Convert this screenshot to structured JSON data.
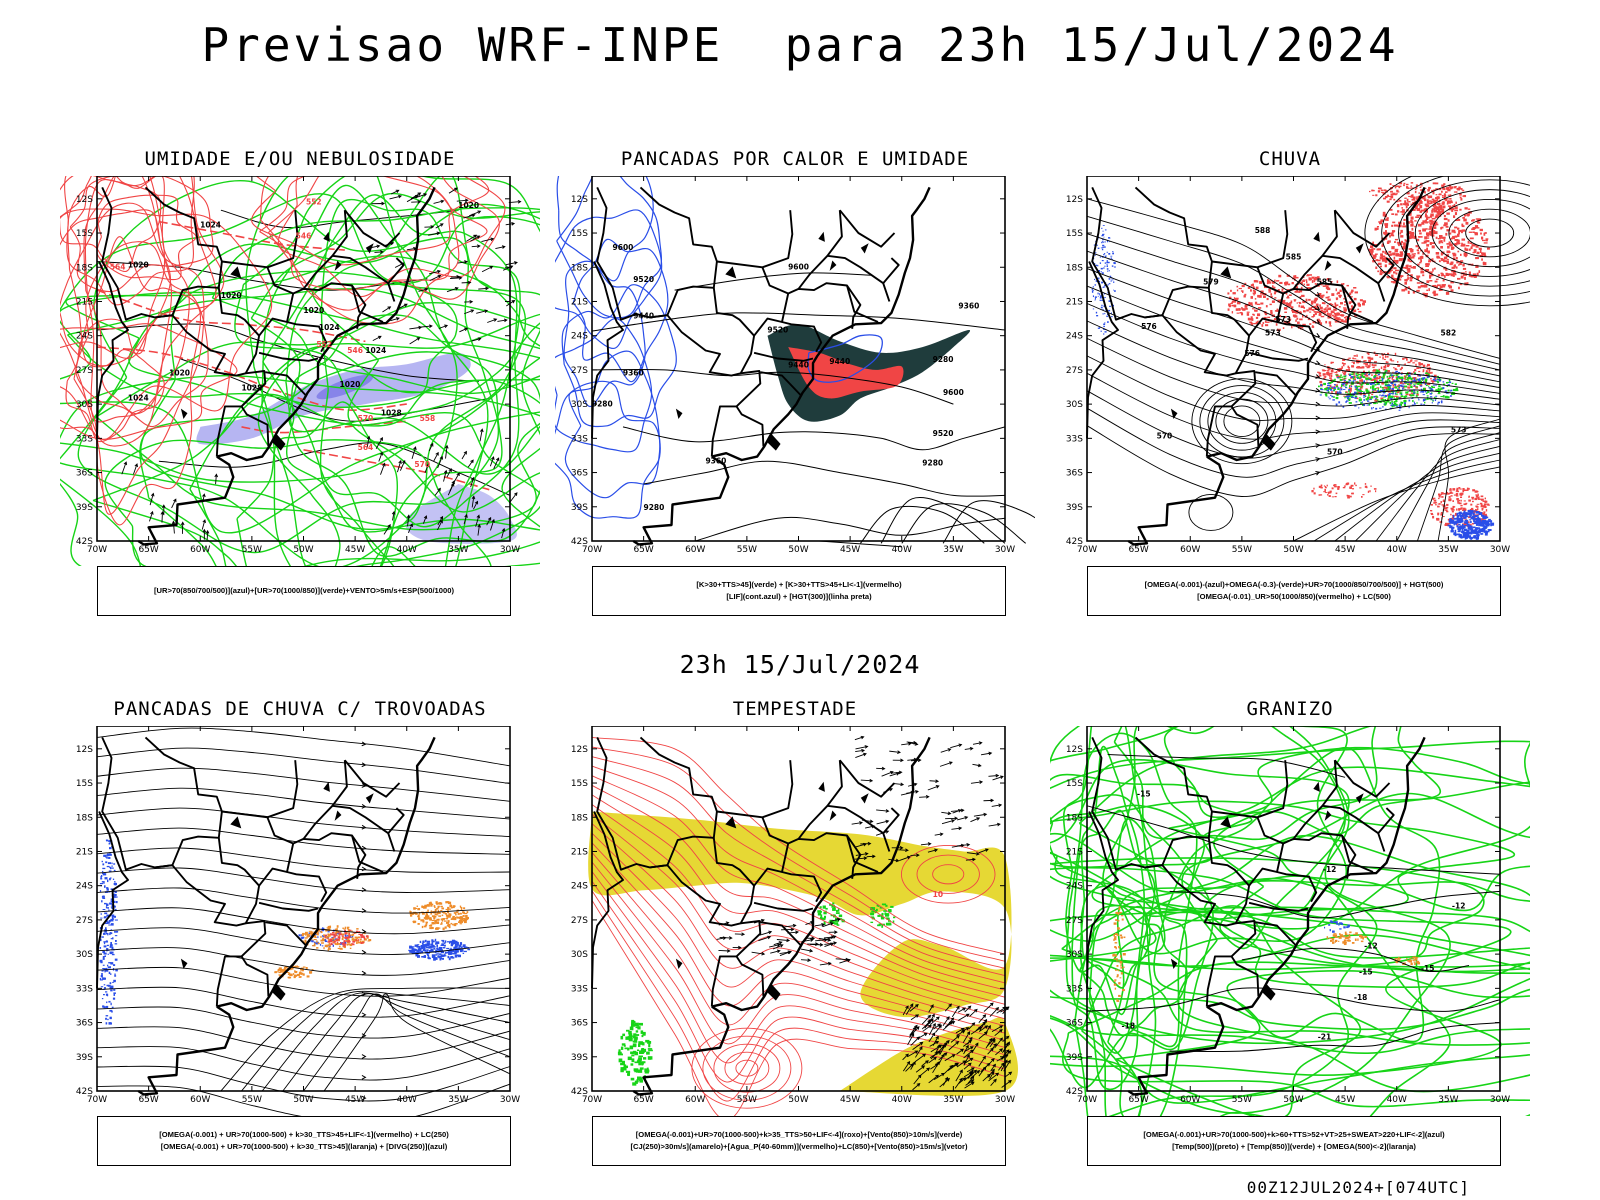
{
  "title": "Previsao WRF-INPE  para 23h 15/Jul/2024",
  "subtitle": "23h 15/Jul/2024",
  "footer": "00Z12JUL2024+[074UTC]",
  "axes": {
    "lat_labels": [
      "12S",
      "15S",
      "18S",
      "21S",
      "24S",
      "27S",
      "30S",
      "33S",
      "36S",
      "39S",
      "42S"
    ],
    "lon_labels": [
      "70W",
      "65W",
      "60W",
      "55W",
      "50W",
      "45W",
      "40W",
      "35W",
      "30W"
    ]
  },
  "colors": {
    "blue": "#2a4ee8",
    "green": "#17d417",
    "red": "#f04545",
    "orange": "#ee8c2a",
    "yellow": "#e6d834",
    "darkteal": "#1f3c3c",
    "lavender": "#a9a8f0"
  },
  "panels": [
    {
      "id": "umidade",
      "title": "UMIDADE E/OU NEBULOSIDADE",
      "legend": [
        "[UR>70(850/700/500)](azul)+[UR>70(1000/850)](verde)+VENTO>5m/s+ESP(500/1000)"
      ],
      "contour_labels": [
        "1020",
        "1024",
        "1020",
        "1020",
        "1020",
        "1024",
        "1024",
        "1020",
        "1024",
        "1028",
        "1020",
        "1028",
        "570",
        "570",
        "564",
        "558",
        "552",
        "546",
        "564",
        "552",
        "546"
      ]
    },
    {
      "id": "pancadas-calor",
      "title": "PANCADAS POR CALOR E UMIDADE",
      "legend": [
        "[K>30+TTS>45](verde) + [K>30+TTS>45+LI<-1](vermelho)",
        "[LIF](cont.azul) + [HGT(300)](linha preta)"
      ],
      "contour_labels": [
        "9600",
        "9520",
        "9440",
        "9360",
        "9280",
        "9600",
        "9520",
        "9440",
        "9360",
        "9280",
        "9600",
        "9520",
        "9440",
        "9360",
        "9280",
        "9280"
      ]
    },
    {
      "id": "chuva",
      "title": "CHUVA",
      "legend": [
        "[OMEGA(-0.001)-(azul)+OMEGA(-0.3)-(verde)+UR>70(1000/850/700/500)] + HGT(500)",
        "[OMEGA(-0.01)_UR>50(1000/850)(vermelho) + LC(500)"
      ],
      "contour_labels": [
        "585",
        "579",
        "576",
        "573",
        "570",
        "573",
        "576",
        "573",
        "570",
        "582",
        "585",
        "588"
      ]
    },
    {
      "id": "trovoadas",
      "title": "PANCADAS DE CHUVA C/ TROVOADAS",
      "legend": [
        "[OMEGA(-0.001) + UR>70(1000-500) + k>30_TTS>45+LIF<-1](vermelho) + LC(250)",
        "[OMEGA(-0.001) + UR>70(1000-500) + k>30_TTS>45](laranja) + [DIVG(250)](azul)"
      ],
      "contour_labels": []
    },
    {
      "id": "tempestade",
      "title": "TEMPESTADE",
      "legend": [
        "[OMEGA(-0.001)+UR>70(1000-500)+k>35_TTS>50+LIF<-4](roxo)+[Vento(850)>10m/s](verde)",
        "[CJ(250)>30m/s](amarelo)+[Agua_P(40-60mm)](vermelho)+LC(850)+[Vento(850)>15m/s](vetor)"
      ],
      "contour_labels": [
        "10"
      ]
    },
    {
      "id": "granizo",
      "title": "GRANIZO",
      "legend": [
        "[OMEGA(-0.001)+UR>70(1000-500)+k>60+TTS>52+VT>25+SWEAT>220+LIF<-2](azul)",
        "[Temp(500)](preto) + [Temp(850)](verde) + [OMEGA(500)<-2](laranja)"
      ],
      "contour_labels": [
        "-15",
        "-12",
        "-12",
        "-12",
        "-15",
        "-15",
        "-18",
        "-18",
        "-21"
      ]
    }
  ]
}
